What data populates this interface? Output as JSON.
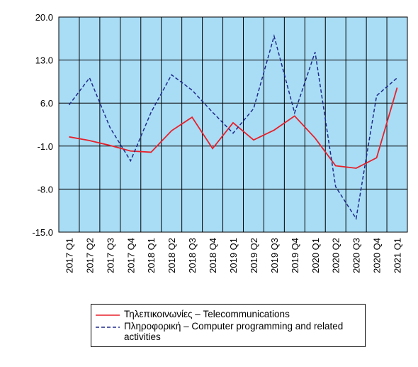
{
  "chart_data": {
    "type": "line",
    "categories": [
      "2017 Q1",
      "2017 Q2",
      "2017 Q3",
      "2017 Q4",
      "2018 Q1",
      "2018 Q2",
      "2018 Q3",
      "2018 Q4",
      "2019 Q1",
      "2019 Q2",
      "2019 Q3",
      "2019 Q4",
      "2020 Q1",
      "2020 Q2",
      "2020 Q3",
      "2020 Q4",
      "2021 Q1"
    ],
    "series": [
      {
        "name": "Τηλεπικοινωνίες – Telecommunications",
        "color": "#e8202a",
        "dash": false,
        "values": [
          0.5,
          -0.1,
          -0.9,
          -1.8,
          -2.0,
          1.5,
          3.7,
          -1.4,
          2.8,
          0.0,
          1.6,
          3.9,
          0.3,
          -4.2,
          -4.6,
          -2.9,
          8.5
        ]
      },
      {
        "name": "Πληροφορική – Computer programming and related activities",
        "color": "#1f2a8a",
        "dash": true,
        "values": [
          5.7,
          10.1,
          2.0,
          -3.4,
          4.5,
          10.6,
          8.1,
          4.5,
          1.1,
          5.1,
          16.9,
          4.4,
          14.3,
          -7.6,
          -12.8,
          7.2,
          10.1
        ]
      }
    ],
    "ylim": [
      -15,
      20
    ],
    "yticks": [
      {
        "value": -15,
        "label": "-15.0"
      },
      {
        "value": -8,
        "label": "-8.0"
      },
      {
        "value": -1,
        "label": "-1.0"
      },
      {
        "value": 6,
        "label": "6.0"
      },
      {
        "value": 13,
        "label": "13.0"
      },
      {
        "value": 20,
        "label": "20.0"
      }
    ],
    "grid": true,
    "plot_background": "#a9ddf6"
  }
}
